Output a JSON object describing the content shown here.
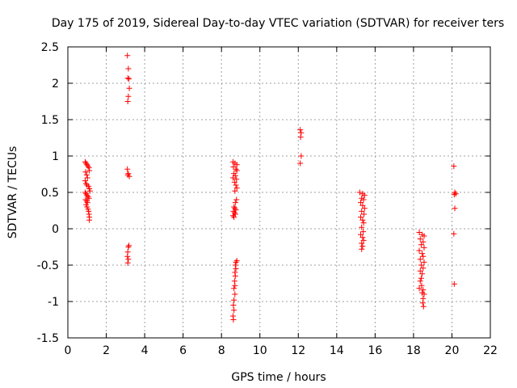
{
  "chart_data": {
    "type": "scatter",
    "title": "Day 175 of 2019, Sidereal Day-to-day VTEC variation (SDTVAR) for receiver ters",
    "xlabel": "GPS time / hours",
    "ylabel": "SDTVAR / TECUs",
    "xlim": [
      0,
      22
    ],
    "ylim": [
      -1.5,
      2.5
    ],
    "xticks": [
      0,
      2,
      4,
      6,
      8,
      10,
      12,
      14,
      16,
      18,
      20,
      22
    ],
    "yticks": [
      -1.5,
      -1,
      -0.5,
      0,
      0.5,
      1,
      1.5,
      2,
      2.5
    ],
    "xtick_labels": [
      "0",
      "2",
      "4",
      "6",
      "8",
      "10",
      "12",
      "14",
      "16",
      "18",
      "20",
      "22"
    ],
    "ytick_labels": [
      "-1.5",
      "-1",
      "-0.5",
      "0",
      "0.5",
      "1",
      "1.5",
      "2",
      "2.5"
    ],
    "grid": true,
    "marker": "+",
    "color": "#ff0000",
    "series": [
      {
        "name": "SDTVAR",
        "points": [
          [
            0.9,
            0.92
          ],
          [
            0.95,
            0.9
          ],
          [
            1.0,
            0.88
          ],
          [
            1.05,
            0.86
          ],
          [
            1.1,
            0.84
          ],
          [
            1.12,
            0.8
          ],
          [
            0.92,
            0.78
          ],
          [
            0.98,
            0.74
          ],
          [
            1.02,
            0.7
          ],
          [
            0.9,
            0.66
          ],
          [
            0.95,
            0.62
          ],
          [
            1.0,
            0.6
          ],
          [
            1.08,
            0.58
          ],
          [
            1.12,
            0.55
          ],
          [
            1.15,
            0.52
          ],
          [
            0.9,
            0.5
          ],
          [
            0.95,
            0.48
          ],
          [
            1.0,
            0.46
          ],
          [
            1.05,
            0.44
          ],
          [
            1.1,
            0.42
          ],
          [
            0.92,
            0.4
          ],
          [
            0.98,
            0.38
          ],
          [
            1.02,
            0.36
          ],
          [
            0.95,
            0.33
          ],
          [
            1.0,
            0.3
          ],
          [
            1.05,
            0.27
          ],
          [
            1.08,
            0.24
          ],
          [
            1.1,
            0.2
          ],
          [
            1.12,
            0.16
          ],
          [
            1.12,
            0.12
          ],
          [
            3.1,
            2.38
          ],
          [
            3.15,
            2.2
          ],
          [
            3.12,
            2.07
          ],
          [
            3.18,
            2.06
          ],
          [
            3.2,
            1.93
          ],
          [
            3.15,
            1.82
          ],
          [
            3.12,
            1.75
          ],
          [
            3.1,
            0.82
          ],
          [
            3.15,
            0.76
          ],
          [
            3.2,
            0.72
          ],
          [
            3.12,
            0.74
          ],
          [
            3.18,
            -0.23
          ],
          [
            3.15,
            -0.25
          ],
          [
            3.12,
            -0.32
          ],
          [
            3.1,
            -0.38
          ],
          [
            3.15,
            -0.42
          ],
          [
            3.12,
            -0.47
          ],
          [
            8.6,
            0.92
          ],
          [
            8.7,
            0.9
          ],
          [
            8.8,
            0.88
          ],
          [
            8.62,
            0.85
          ],
          [
            8.75,
            0.82
          ],
          [
            8.8,
            0.8
          ],
          [
            8.65,
            0.76
          ],
          [
            8.72,
            0.73
          ],
          [
            8.6,
            0.7
          ],
          [
            8.78,
            0.68
          ],
          [
            8.68,
            0.64
          ],
          [
            8.75,
            0.6
          ],
          [
            8.8,
            0.56
          ],
          [
            8.7,
            0.52
          ],
          [
            8.78,
            0.4
          ],
          [
            8.72,
            0.36
          ],
          [
            8.65,
            0.3
          ],
          [
            8.7,
            0.28
          ],
          [
            8.75,
            0.26
          ],
          [
            8.62,
            0.24
          ],
          [
            8.68,
            0.22
          ],
          [
            8.72,
            0.2
          ],
          [
            8.6,
            0.18
          ],
          [
            8.65,
            0.16
          ],
          [
            8.8,
            -0.44
          ],
          [
            8.75,
            -0.46
          ],
          [
            8.72,
            -0.5
          ],
          [
            8.75,
            -0.55
          ],
          [
            8.7,
            -0.6
          ],
          [
            8.72,
            -0.65
          ],
          [
            8.68,
            -0.72
          ],
          [
            8.7,
            -0.78
          ],
          [
            8.65,
            -0.82
          ],
          [
            8.7,
            -0.9
          ],
          [
            8.65,
            -0.98
          ],
          [
            8.62,
            -1.05
          ],
          [
            8.65,
            -1.12
          ],
          [
            8.6,
            -1.2
          ],
          [
            8.62,
            -1.25
          ],
          [
            12.1,
            1.36
          ],
          [
            12.15,
            1.32
          ],
          [
            12.12,
            1.26
          ],
          [
            12.15,
            1.0
          ],
          [
            12.1,
            0.9
          ],
          [
            15.2,
            0.5
          ],
          [
            15.35,
            0.48
          ],
          [
            15.45,
            0.46
          ],
          [
            15.3,
            0.42
          ],
          [
            15.4,
            0.4
          ],
          [
            15.25,
            0.36
          ],
          [
            15.35,
            0.32
          ],
          [
            15.45,
            0.28
          ],
          [
            15.3,
            0.24
          ],
          [
            15.42,
            0.2
          ],
          [
            15.25,
            0.16
          ],
          [
            15.35,
            0.12
          ],
          [
            15.4,
            0.08
          ],
          [
            15.3,
            0.02
          ],
          [
            15.38,
            -0.04
          ],
          [
            15.25,
            -0.08
          ],
          [
            15.35,
            -0.12
          ],
          [
            15.4,
            -0.16
          ],
          [
            15.3,
            -0.2
          ],
          [
            15.35,
            -0.24
          ],
          [
            15.3,
            -0.28
          ],
          [
            18.3,
            -0.05
          ],
          [
            18.45,
            -0.08
          ],
          [
            18.55,
            -0.1
          ],
          [
            18.35,
            -0.14
          ],
          [
            18.5,
            -0.18
          ],
          [
            18.4,
            -0.22
          ],
          [
            18.55,
            -0.26
          ],
          [
            18.3,
            -0.3
          ],
          [
            18.45,
            -0.34
          ],
          [
            18.5,
            -0.38
          ],
          [
            18.35,
            -0.42
          ],
          [
            18.55,
            -0.46
          ],
          [
            18.4,
            -0.5
          ],
          [
            18.5,
            -0.54
          ],
          [
            18.35,
            -0.58
          ],
          [
            18.45,
            -0.62
          ],
          [
            18.4,
            -0.68
          ],
          [
            18.35,
            -0.72
          ],
          [
            18.42,
            -0.78
          ],
          [
            18.3,
            -0.82
          ],
          [
            18.5,
            -0.84
          ],
          [
            18.45,
            -0.88
          ],
          [
            18.55,
            -0.9
          ],
          [
            18.5,
            -0.96
          ],
          [
            18.48,
            -1.02
          ],
          [
            18.52,
            -1.07
          ],
          [
            20.1,
            0.86
          ],
          [
            20.15,
            0.5
          ],
          [
            20.2,
            0.48
          ],
          [
            20.12,
            0.47
          ],
          [
            20.15,
            0.28
          ],
          [
            20.1,
            -0.07
          ],
          [
            20.12,
            -0.76
          ]
        ]
      }
    ]
  }
}
